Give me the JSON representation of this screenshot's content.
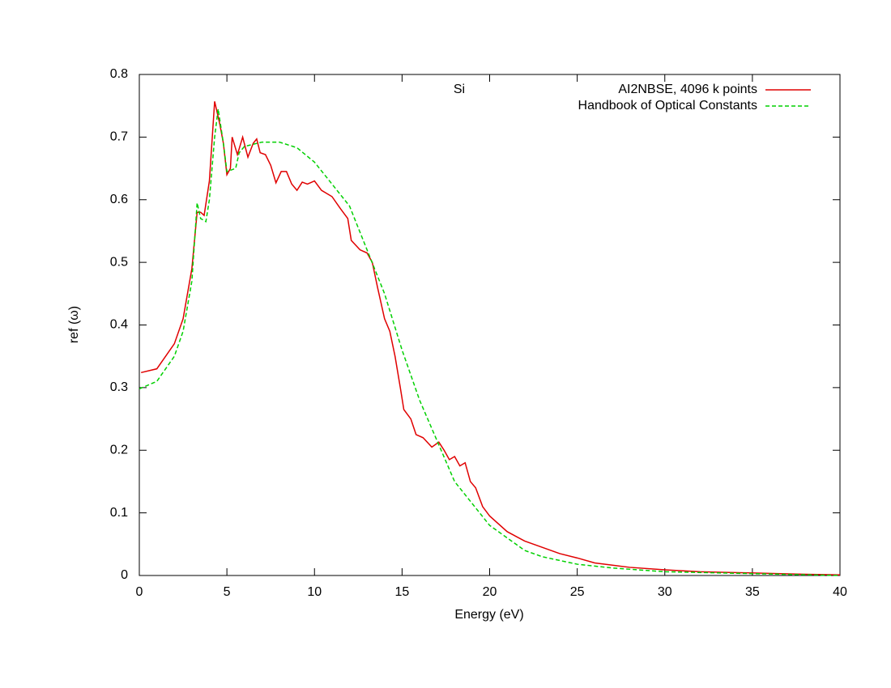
{
  "chart_data": {
    "type": "line",
    "title": "Si",
    "x_label": "Energy (eV)",
    "y_label": "ref (ω)",
    "xlim": [
      0,
      40
    ],
    "xticks": [
      0,
      5,
      10,
      15,
      20,
      25,
      30,
      35,
      40
    ],
    "ylim": [
      0,
      0.8
    ],
    "yticks": [
      0,
      0.1,
      0.2,
      0.3,
      0.4,
      0.5,
      0.6,
      0.7,
      0.8
    ],
    "legend": "top-right",
    "series": [
      {
        "name": "AI2NBSE, 4096 k points",
        "color": "#e00000",
        "dash": "solid",
        "x": [
          0.1,
          1,
          2,
          2.5,
          3,
          3.3,
          3.5,
          3.7,
          4,
          4.3,
          4.6,
          4.8,
          5.0,
          5.2,
          5.3,
          5.6,
          5.9,
          6.2,
          6.5,
          6.7,
          6.9,
          7.2,
          7.5,
          7.8,
          8.1,
          8.4,
          8.7,
          9.0,
          9.3,
          9.6,
          10.0,
          10.4,
          11.0,
          11.5,
          11.9,
          12.1,
          12.6,
          13.0,
          13.3,
          13.6,
          14.0,
          14.3,
          14.6,
          14.9,
          15.1,
          15.5,
          15.8,
          16.2,
          16.7,
          17.1,
          17.4,
          17.7,
          18.0,
          18.3,
          18.6,
          18.9,
          19.2,
          19.6,
          20.0,
          21.0,
          22.0,
          23.0,
          24.0,
          25.0,
          26.0,
          28.0,
          30.0,
          32.0,
          35.0,
          38.0,
          40.0
        ],
        "values": [
          0.324,
          0.33,
          0.37,
          0.41,
          0.49,
          0.58,
          0.58,
          0.575,
          0.63,
          0.757,
          0.72,
          0.69,
          0.64,
          0.65,
          0.7,
          0.672,
          0.7,
          0.668,
          0.69,
          0.697,
          0.675,
          0.672,
          0.655,
          0.627,
          0.645,
          0.645,
          0.625,
          0.615,
          0.628,
          0.625,
          0.63,
          0.615,
          0.605,
          0.585,
          0.57,
          0.535,
          0.52,
          0.515,
          0.5,
          0.46,
          0.41,
          0.39,
          0.35,
          0.3,
          0.265,
          0.25,
          0.225,
          0.22,
          0.205,
          0.213,
          0.2,
          0.185,
          0.19,
          0.175,
          0.18,
          0.15,
          0.14,
          0.11,
          0.095,
          0.07,
          0.055,
          0.045,
          0.035,
          0.028,
          0.02,
          0.013,
          0.009,
          0.006,
          0.004,
          0.002,
          0.001
        ]
      },
      {
        "name": "Handbook of Optical Constants",
        "color": "#00d000",
        "dash": "dashed",
        "x": [
          0,
          1,
          2,
          2.5,
          3,
          3.3,
          3.5,
          3.8,
          4.0,
          4.3,
          4.5,
          4.8,
          5.0,
          5.5,
          5.7,
          6.0,
          7.0,
          8.0,
          9.0,
          10.0,
          11.0,
          12.0,
          13.0,
          14.0,
          15.0,
          16.0,
          17.0,
          18.0,
          19.0,
          20.0,
          21.0,
          22.0,
          23.0,
          25.0,
          27.0,
          30.0,
          35.0,
          40.0
        ],
        "values": [
          0.298,
          0.31,
          0.35,
          0.39,
          0.47,
          0.595,
          0.57,
          0.565,
          0.6,
          0.7,
          0.745,
          0.69,
          0.645,
          0.65,
          0.675,
          0.685,
          0.692,
          0.692,
          0.683,
          0.66,
          0.625,
          0.59,
          0.52,
          0.45,
          0.36,
          0.28,
          0.215,
          0.15,
          0.115,
          0.08,
          0.06,
          0.04,
          0.03,
          0.018,
          0.012,
          0.006,
          0.003,
          0.0
        ]
      }
    ]
  }
}
